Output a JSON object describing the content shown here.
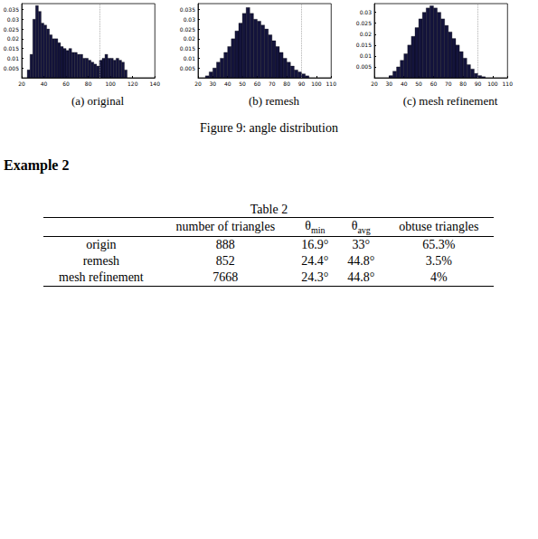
{
  "chart_data": [
    {
      "type": "histogram",
      "caption": "(a) original",
      "color": "#14143c",
      "grid": false,
      "vline": 90,
      "bins": [
        25,
        27.5,
        30,
        32.5,
        35,
        37.5,
        40,
        42.5,
        45,
        47.5,
        50,
        52.5,
        55,
        57.5,
        60,
        62.5,
        65,
        67.5,
        70,
        72.5,
        75,
        77.5,
        80,
        82.5,
        85,
        87.5,
        90,
        92.5,
        95,
        97.5,
        100,
        102.5,
        105,
        107.5,
        110,
        112.5,
        115
      ],
      "values": [
        0.004,
        0.012,
        0.03,
        0.037,
        0.034,
        0.028,
        0.027,
        0.025,
        0.022,
        0.02,
        0.02,
        0.018,
        0.016,
        0.015,
        0.014,
        0.015,
        0.013,
        0.013,
        0.012,
        0.012,
        0.01,
        0.01,
        0.009,
        0.008,
        0.007,
        0.006,
        0.009,
        0.01,
        0.012,
        0.01,
        0.01,
        0.009,
        0.01,
        0.009,
        0.008,
        0.004
      ],
      "xlim": [
        20,
        140
      ],
      "xticks": [
        20,
        40,
        60,
        80,
        100,
        120,
        140
      ],
      "ylim": [
        0,
        0.038
      ],
      "yticks": [
        0.005,
        0.01,
        0.015,
        0.02,
        0.025,
        0.03,
        0.035
      ]
    },
    {
      "type": "histogram",
      "caption": "(b) remesh",
      "color": "#14143c",
      "grid": false,
      "vline": 90,
      "bins": [
        25,
        27.5,
        30,
        32.5,
        35,
        37.5,
        40,
        42.5,
        45,
        47.5,
        50,
        52.5,
        55,
        57.5,
        60,
        62.5,
        65,
        67.5,
        70,
        72.5,
        75,
        77.5,
        80,
        82.5,
        85,
        87.5,
        90,
        92.5,
        95
      ],
      "values": [
        0.001,
        0.003,
        0.005,
        0.008,
        0.01,
        0.013,
        0.016,
        0.02,
        0.024,
        0.028,
        0.033,
        0.036,
        0.033,
        0.03,
        0.029,
        0.027,
        0.025,
        0.022,
        0.019,
        0.016,
        0.013,
        0.01,
        0.008,
        0.006,
        0.004,
        0.003,
        0.002,
        0.001
      ],
      "xlim": [
        20,
        110
      ],
      "xticks": [
        20,
        30,
        40,
        50,
        60,
        70,
        80,
        90,
        100,
        110
      ],
      "ylim": [
        0,
        0.038
      ],
      "yticks": [
        0.005,
        0.01,
        0.015,
        0.02,
        0.025,
        0.03,
        0.035
      ]
    },
    {
      "type": "histogram",
      "caption": "(c) mesh refinement",
      "color": "#14143c",
      "grid": false,
      "vline": 90,
      "bins": [
        30,
        32.5,
        35,
        37.5,
        40,
        42.5,
        45,
        47.5,
        50,
        52.5,
        55,
        57.5,
        60,
        62.5,
        65,
        67.5,
        70,
        72.5,
        75,
        77.5,
        80,
        82.5,
        85,
        87.5,
        90,
        92.5,
        95
      ],
      "values": [
        0.001,
        0.003,
        0.005,
        0.008,
        0.011,
        0.015,
        0.019,
        0.023,
        0.027,
        0.03,
        0.032,
        0.033,
        0.032,
        0.03,
        0.027,
        0.024,
        0.021,
        0.018,
        0.015,
        0.012,
        0.009,
        0.006,
        0.004,
        0.002,
        0.001,
        0.0005
      ],
      "xlim": [
        20,
        110
      ],
      "xticks": [
        20,
        30,
        40,
        50,
        60,
        70,
        80,
        90,
        100,
        110
      ],
      "ylim": [
        0,
        0.034
      ],
      "yticks": [
        0.005,
        0.01,
        0.015,
        0.02,
        0.025,
        0.03
      ]
    }
  ],
  "figure_caption": "Figure 9: angle distribution",
  "section": "Example 2",
  "table": {
    "title": "Table 2",
    "header": [
      "",
      "number of triangles",
      {
        "text": "θ",
        "sub": "min"
      },
      {
        "text": "θ",
        "sub": "avg"
      },
      "obtuse triangles"
    ],
    "rows": [
      [
        "origin",
        "888",
        "16.9°",
        "33°",
        "65.3%"
      ],
      [
        "remesh",
        "852",
        "24.4°",
        "44.8°",
        "3.5%"
      ],
      [
        "mesh refinement",
        "7668",
        "24.3°",
        "44.8°",
        "4%"
      ]
    ]
  }
}
